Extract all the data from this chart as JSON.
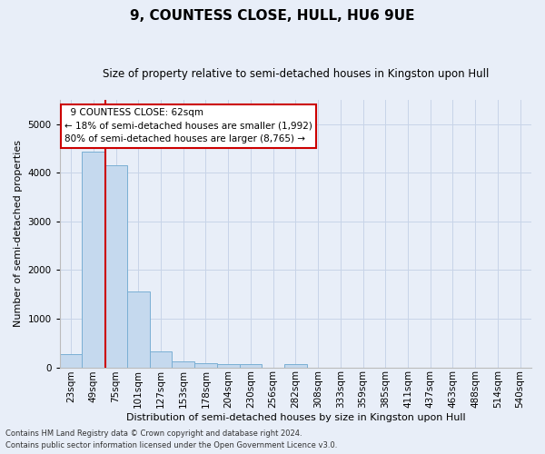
{
  "title": "9, COUNTESS CLOSE, HULL, HU6 9UE",
  "subtitle": "Size of property relative to semi-detached houses in Kingston upon Hull",
  "xlabel": "Distribution of semi-detached houses by size in Kingston upon Hull",
  "ylabel": "Number of semi-detached properties",
  "footnote1": "Contains HM Land Registry data © Crown copyright and database right 2024.",
  "footnote2": "Contains public sector information licensed under the Open Government Licence v3.0.",
  "categories": [
    "23sqm",
    "49sqm",
    "75sqm",
    "101sqm",
    "127sqm",
    "153sqm",
    "178sqm",
    "204sqm",
    "230sqm",
    "256sqm",
    "282sqm",
    "308sqm",
    "333sqm",
    "359sqm",
    "385sqm",
    "411sqm",
    "437sqm",
    "463sqm",
    "488sqm",
    "514sqm",
    "540sqm"
  ],
  "values": [
    280,
    4430,
    4150,
    1560,
    320,
    115,
    80,
    65,
    60,
    0,
    65,
    0,
    0,
    0,
    0,
    0,
    0,
    0,
    0,
    0,
    0
  ],
  "bar_color": "#c5d9ee",
  "bar_edge_color": "#7aafd4",
  "property_line_x": 1.54,
  "property_sqm": 62,
  "pct_smaller": 18,
  "count_smaller": "1,992",
  "pct_larger": 80,
  "count_larger": "8,765",
  "annotation_label": "9 COUNTESS CLOSE: 62sqm",
  "annotation_smaller": "← 18% of semi-detached houses are smaller (1,992)",
  "annotation_larger": "80% of semi-detached houses are larger (8,765) →",
  "ylim": [
    0,
    5500
  ],
  "annotation_box_color": "#ffffff",
  "annotation_box_edge": "#cc0000",
  "line_color": "#cc0000",
  "bg_color": "#e8eef8",
  "grid_color": "#c8d4e8",
  "title_fontsize": 11,
  "subtitle_fontsize": 8.5,
  "xlabel_fontsize": 8,
  "ylabel_fontsize": 8,
  "tick_fontsize": 7.5,
  "ann_fontsize": 7.5
}
